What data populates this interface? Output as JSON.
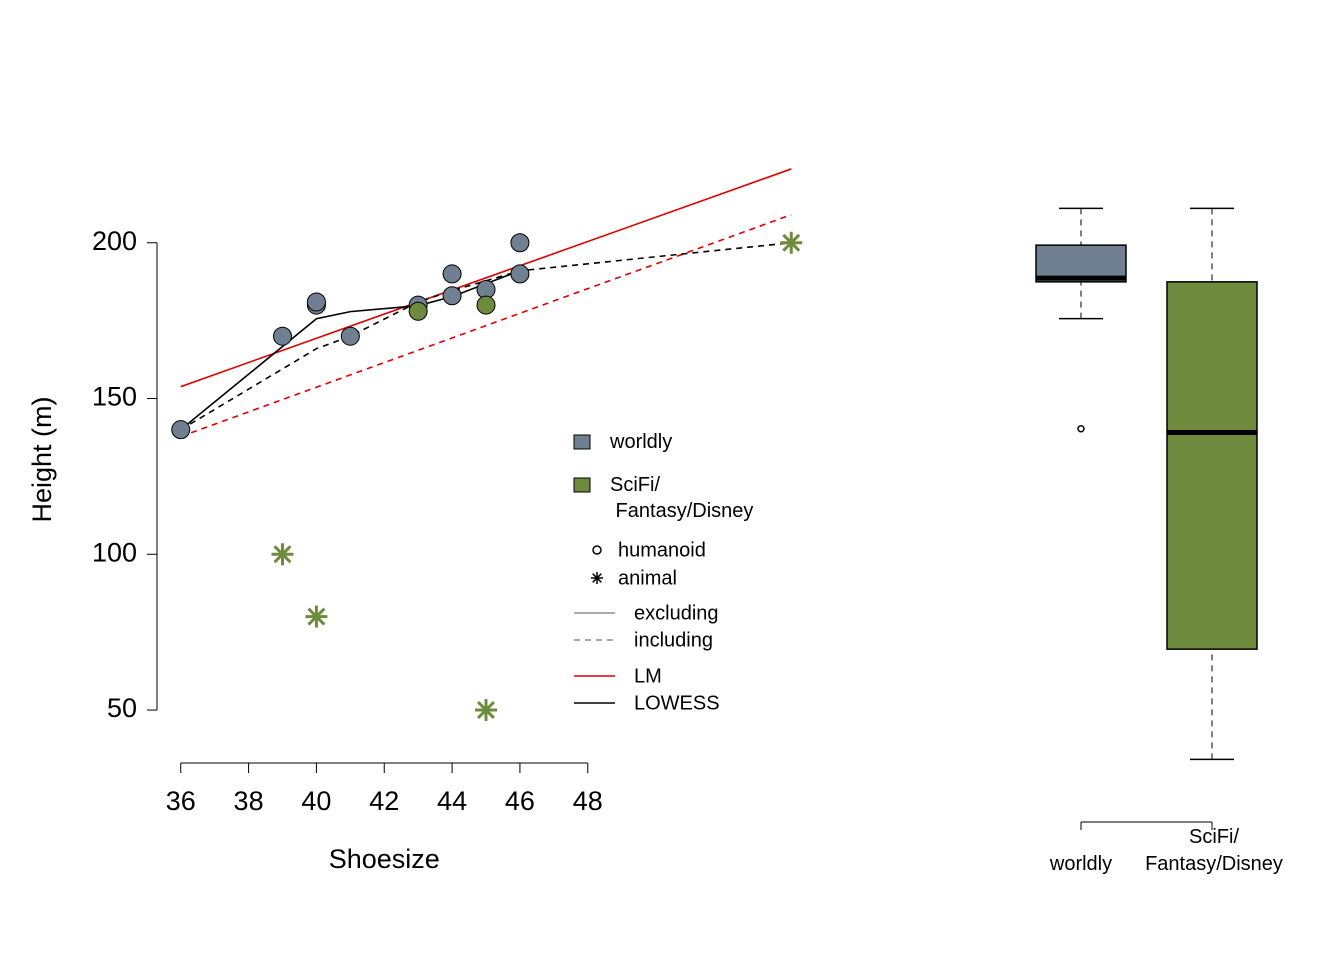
{
  "chart_data": [
    {
      "type": "scatter",
      "xlabel": "Shoesize",
      "ylabel": "Height (m)",
      "xlim": [
        35.3,
        54.7
      ],
      "ylim": [
        33,
        224
      ],
      "xticks": [
        36,
        38,
        40,
        42,
        44,
        46,
        48
      ],
      "yticks": [
        50,
        100,
        150,
        200
      ],
      "groups": [
        {
          "name": "worldly",
          "color": "#708090"
        },
        {
          "name": "SciFi/\n Fantasy/Disney",
          "color": "#6e8b3d"
        }
      ],
      "shapes": [
        {
          "name": "humanoid",
          "marker": "circle"
        },
        {
          "name": "animal",
          "marker": "asterisk"
        }
      ],
      "line_styles": [
        {
          "name": "excluding",
          "dash": "solid"
        },
        {
          "name": "including",
          "dash": "dashed"
        }
      ],
      "methods": [
        {
          "name": "LM",
          "color": "#e00000"
        },
        {
          "name": "LOWESS",
          "color": "#000000"
        }
      ],
      "points": [
        {
          "group": 0,
          "shape": 0,
          "x": [
            36,
            39,
            40,
            40,
            41,
            43,
            44,
            44,
            45,
            46,
            46
          ],
          "values": [
            140,
            170,
            180,
            181,
            170,
            180,
            190,
            183,
            185,
            200,
            190
          ]
        },
        {
          "group": 1,
          "shape": 0,
          "x": [
            43,
            45
          ],
          "values": [
            178,
            180
          ]
        },
        {
          "group": 1,
          "shape": 1,
          "x": [
            39,
            40,
            45,
            54
          ],
          "values": [
            100,
            80,
            50,
            200
          ]
        }
      ],
      "fits": [
        {
          "method": 0,
          "style": 0,
          "x": [
            36,
            54
          ],
          "values": [
            153.8,
            223.7
          ]
        },
        {
          "method": 0,
          "style": 1,
          "x": [
            36,
            54
          ],
          "values": [
            137.8,
            209
          ]
        },
        {
          "method": 1,
          "style": 0,
          "x": [
            36,
            40,
            41,
            43,
            44,
            45,
            46
          ],
          "values": [
            140,
            175.6,
            177.9,
            179.8,
            182.7,
            186.9,
            191
          ]
        },
        {
          "method": 1,
          "style": 1,
          "x": [
            36,
            40,
            41,
            43,
            44,
            46,
            54
          ],
          "values": [
            140,
            166,
            170,
            181,
            184.6,
            191,
            200
          ]
        }
      ]
    },
    {
      "type": "box",
      "ylim": [
        49,
        211
      ],
      "categories": [
        "worldly",
        "SciFi/\nFantasy/Disney"
      ],
      "series": [
        {
          "color": "#708090",
          "min": 170,
          "q1": 180,
          "median": 181,
          "q3": 190,
          "max": 200,
          "outliers": [
            140
          ]
        },
        {
          "color": "#6e8b3d",
          "min": 50,
          "q1": 80,
          "median": 139,
          "q3": 180,
          "max": 200,
          "outliers": []
        }
      ]
    }
  ]
}
